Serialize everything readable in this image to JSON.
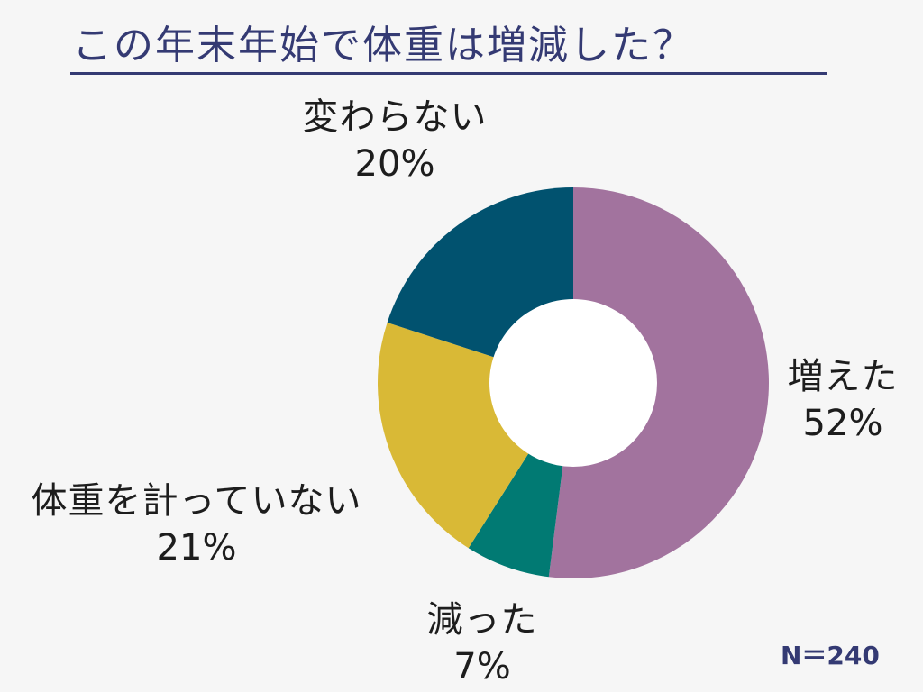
{
  "title": "この年末年始で体重は増減した？",
  "note": "N＝240",
  "chart_data": {
    "type": "pie",
    "style": "donut",
    "title": "この年末年始で体重は増減した？",
    "slices": [
      {
        "label": "増えた",
        "value": 52,
        "pct_label": "52%",
        "color": "#a2739e"
      },
      {
        "label": "減った",
        "value": 7,
        "pct_label": "7%",
        "color": "#017a73"
      },
      {
        "label": "体重を計っていない",
        "value": 21,
        "pct_label": "21%",
        "color": "#d9b936"
      },
      {
        "label": "変わらない",
        "value": 20,
        "pct_label": "20%",
        "color": "#01526f"
      }
    ],
    "start_angle": "top, clockwise",
    "total_n": 240
  }
}
